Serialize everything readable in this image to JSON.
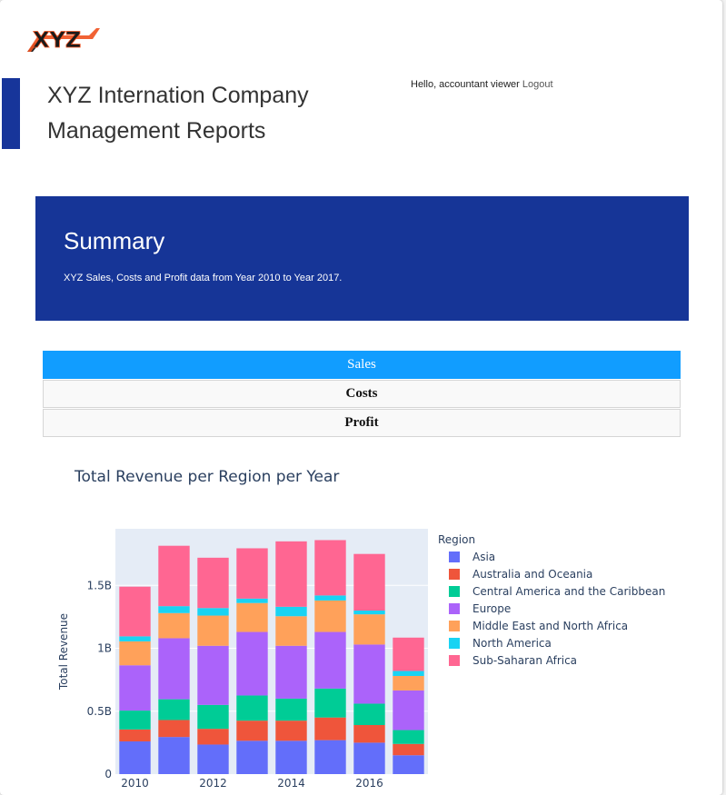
{
  "header": {
    "logo_text": "XYZ",
    "title_line1": "XYZ Internation Company",
    "title_line2": "Management Reports",
    "greeting": "Hello, accountant viewer",
    "logout": "Logout"
  },
  "banner": {
    "heading": "Summary",
    "text": "XYZ Sales, Costs and Profit data from Year 2010 to Year 2017."
  },
  "tabs": [
    {
      "label": "Sales",
      "active": true
    },
    {
      "label": "Costs",
      "active": false
    },
    {
      "label": "Profit",
      "active": false
    }
  ],
  "colors": {
    "accent": "#17359a",
    "active_tab": "#119dff",
    "plot_bg": "#e5ecf6"
  },
  "chart_data": {
    "type": "bar",
    "stacked": true,
    "title": "Total Revenue per Region per Year",
    "xlabel": "",
    "ylabel": "Total Revenue",
    "legend_title": "Region",
    "legend_position": "right",
    "ylim": [
      0,
      1950000000
    ],
    "yticks": [
      {
        "value": 0,
        "label": "0"
      },
      {
        "value": 500000000,
        "label": "0.5B"
      },
      {
        "value": 1000000000,
        "label": "1B"
      },
      {
        "value": 1500000000,
        "label": "1.5B"
      }
    ],
    "categories": [
      2010,
      2011,
      2012,
      2013,
      2014,
      2015,
      2016,
      2017
    ],
    "xticks": [
      {
        "value": 2010,
        "label": "2010"
      },
      {
        "value": 2012,
        "label": "2012"
      },
      {
        "value": 2014,
        "label": "2014"
      },
      {
        "value": 2016,
        "label": "2016"
      }
    ],
    "series": [
      {
        "name": "Asia",
        "color": "#636efa",
        "values": [
          260000000,
          295000000,
          235000000,
          265000000,
          265000000,
          270000000,
          250000000,
          150000000
        ]
      },
      {
        "name": "Australia and Oceania",
        "color": "#ef553b",
        "values": [
          95000000,
          135000000,
          125000000,
          160000000,
          160000000,
          180000000,
          140000000,
          90000000
        ]
      },
      {
        "name": "Central America and the Caribbean",
        "color": "#00cc96",
        "values": [
          150000000,
          165000000,
          190000000,
          200000000,
          175000000,
          230000000,
          170000000,
          110000000
        ]
      },
      {
        "name": "Europe",
        "color": "#ab63fa",
        "values": [
          360000000,
          485000000,
          470000000,
          505000000,
          420000000,
          450000000,
          470000000,
          315000000
        ]
      },
      {
        "name": "Middle East and North Africa",
        "color": "#ffa15a",
        "values": [
          190000000,
          200000000,
          240000000,
          230000000,
          235000000,
          250000000,
          240000000,
          115000000
        ]
      },
      {
        "name": "North America",
        "color": "#19d3f3",
        "values": [
          40000000,
          55000000,
          60000000,
          35000000,
          75000000,
          40000000,
          30000000,
          40000000
        ]
      },
      {
        "name": "Sub-Saharan Africa",
        "color": "#ff6692",
        "values": [
          395000000,
          480000000,
          400000000,
          400000000,
          520000000,
          440000000,
          450000000,
          265000000
        ]
      }
    ]
  }
}
